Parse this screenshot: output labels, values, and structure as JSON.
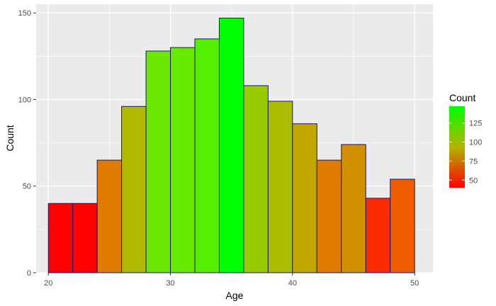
{
  "chart_data": {
    "type": "bar",
    "subtype": "histogram",
    "bins": [
      {
        "x0": 20,
        "x1": 22,
        "count": 40
      },
      {
        "x0": 22,
        "x1": 24,
        "count": 40
      },
      {
        "x0": 24,
        "x1": 26,
        "count": 65
      },
      {
        "x0": 26,
        "x1": 28,
        "count": 96
      },
      {
        "x0": 28,
        "x1": 30,
        "count": 128
      },
      {
        "x0": 30,
        "x1": 32,
        "count": 130
      },
      {
        "x0": 32,
        "x1": 34,
        "count": 135
      },
      {
        "x0": 34,
        "x1": 36,
        "count": 147
      },
      {
        "x0": 36,
        "x1": 38,
        "count": 108
      },
      {
        "x0": 38,
        "x1": 40,
        "count": 99
      },
      {
        "x0": 40,
        "x1": 42,
        "count": 86
      },
      {
        "x0": 42,
        "x1": 44,
        "count": 65
      },
      {
        "x0": 44,
        "x1": 46,
        "count": 74
      },
      {
        "x0": 46,
        "x1": 48,
        "count": 43
      },
      {
        "x0": 48,
        "x1": 50,
        "count": 54
      }
    ],
    "xlabel": "Age",
    "ylabel": "Count",
    "xlim": [
      19,
      51.5
    ],
    "ylim": [
      0,
      155
    ],
    "xticks": [
      20,
      30,
      40,
      50
    ],
    "yticks": [
      0,
      50,
      100,
      150
    ],
    "grid": true,
    "legend": {
      "title": "Count",
      "placement": "right",
      "type": "colorbar",
      "range": [
        40,
        147
      ],
      "ticks": [
        50,
        75,
        100,
        125
      ]
    },
    "colors": {
      "low": "#ff0000",
      "high": "#00ff00",
      "outline": "#191970",
      "panel": "#ebebeb",
      "grid": "#ffffff"
    }
  }
}
